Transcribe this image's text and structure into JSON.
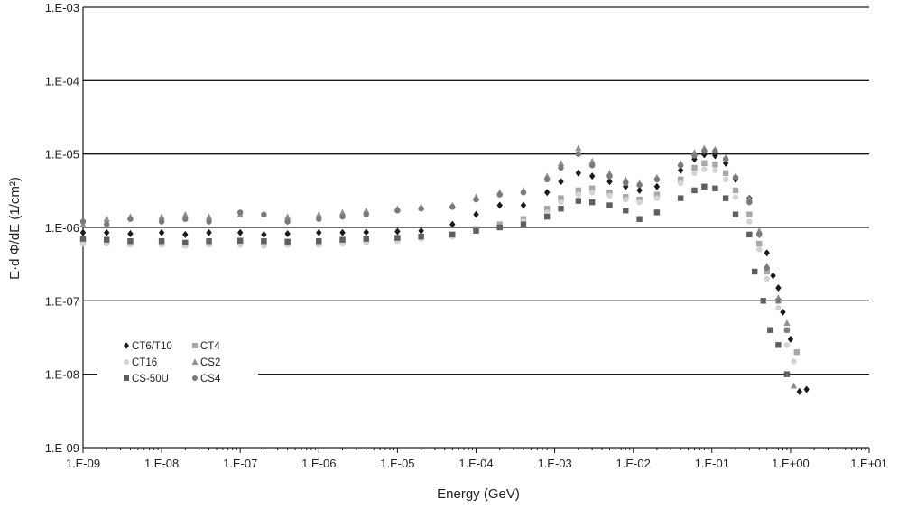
{
  "chart_data": {
    "type": "scatter",
    "title": "",
    "xlabel": "Energy (GeV)",
    "ylabel": "E·d Φ/dE (1/cm²)",
    "xscale": "log",
    "yscale": "log",
    "xlim": [
      1e-09,
      10
    ],
    "ylim": [
      1e-09,
      0.001
    ],
    "xticks": [
      1e-09,
      1e-08,
      1e-07,
      1e-06,
      1e-05,
      0.0001,
      0.001,
      0.01,
      0.1,
      1,
      10
    ],
    "xtick_labels": [
      "1.E-09",
      "1.E-08",
      "1.E-07",
      "1.E-06",
      "1.E-05",
      "1.E-04",
      "1.E-03",
      "1.E-02",
      "1.E-01",
      "1.E+00",
      "1.E+01"
    ],
    "yticks": [
      1e-09,
      1e-08,
      1e-07,
      1e-06,
      1e-05,
      0.0001,
      0.001
    ],
    "ytick_labels": [
      "1.E-09",
      "1.E-08",
      "1.E-07",
      "1.E-06",
      "1.E-05",
      "1.E-04",
      "1.E-03"
    ],
    "grid": "horizontal",
    "legend_position": "lower-left",
    "series": [
      {
        "name": "CT6/T10",
        "marker": "diamond",
        "color": "#1a1a1a",
        "points": [
          [
            1e-09,
            8.5e-07
          ],
          [
            2e-09,
            8.5e-07
          ],
          [
            4e-09,
            8.2e-07
          ],
          [
            1e-08,
            8.5e-07
          ],
          [
            2e-08,
            8e-07
          ],
          [
            4e-08,
            8.5e-07
          ],
          [
            1e-07,
            8.5e-07
          ],
          [
            2e-07,
            8e-07
          ],
          [
            4e-07,
            8.2e-07
          ],
          [
            1e-06,
            8.5e-07
          ],
          [
            2e-06,
            8.5e-07
          ],
          [
            4e-06,
            8.6e-07
          ],
          [
            1e-05,
            8.8e-07
          ],
          [
            2e-05,
            9e-07
          ],
          [
            5e-05,
            1.1e-06
          ],
          [
            0.0001,
            1.5e-06
          ],
          [
            0.0002,
            2e-06
          ],
          [
            0.0004,
            2e-06
          ],
          [
            0.0008,
            3e-06
          ],
          [
            0.0012,
            4.2e-06
          ],
          [
            0.002,
            5.5e-06
          ],
          [
            0.003,
            5e-06
          ],
          [
            0.005,
            4.2e-06
          ],
          [
            0.008,
            3.6e-06
          ],
          [
            0.012,
            3.2e-06
          ],
          [
            0.02,
            3.6e-06
          ],
          [
            0.04,
            6e-06
          ],
          [
            0.06,
            8.5e-06
          ],
          [
            0.08,
            9.8e-06
          ],
          [
            0.11,
            9.5e-06
          ],
          [
            0.15,
            7.5e-06
          ],
          [
            0.2,
            4.5e-06
          ],
          [
            0.3,
            2.5e-06
          ],
          [
            0.4,
            8e-07
          ],
          [
            0.5,
            4.5e-07
          ],
          [
            0.6,
            2.2e-07
          ],
          [
            0.7,
            1.5e-07
          ],
          [
            0.8,
            7e-08
          ],
          [
            1.0,
            3e-08
          ],
          [
            1.3,
            5.8e-09
          ],
          [
            1.6,
            6.2e-09
          ]
        ]
      },
      {
        "name": "CT4",
        "marker": "square",
        "color": "#a8a8a8",
        "points": [
          [
            1e-09,
            6.5e-07
          ],
          [
            2e-09,
            6.2e-07
          ],
          [
            4e-09,
            6e-07
          ],
          [
            1e-08,
            6e-07
          ],
          [
            2e-08,
            5.8e-07
          ],
          [
            4e-08,
            6e-07
          ],
          [
            1e-07,
            6.2e-07
          ],
          [
            2e-07,
            6e-07
          ],
          [
            4e-07,
            6e-07
          ],
          [
            1e-06,
            6e-07
          ],
          [
            2e-06,
            6.5e-07
          ],
          [
            4e-06,
            6.5e-07
          ],
          [
            1e-05,
            7e-07
          ],
          [
            2e-05,
            7.5e-07
          ],
          [
            5e-05,
            8e-07
          ],
          [
            0.0001,
            9.5e-07
          ],
          [
            0.0002,
            1.1e-06
          ],
          [
            0.0004,
            1.3e-06
          ],
          [
            0.0008,
            1.8e-06
          ],
          [
            0.0012,
            2.5e-06
          ],
          [
            0.002,
            3.2e-06
          ],
          [
            0.003,
            3.4e-06
          ],
          [
            0.005,
            3e-06
          ],
          [
            0.008,
            2.6e-06
          ],
          [
            0.012,
            2.4e-06
          ],
          [
            0.02,
            2.8e-06
          ],
          [
            0.04,
            4.5e-06
          ],
          [
            0.06,
            6.5e-06
          ],
          [
            0.08,
            7.5e-06
          ],
          [
            0.11,
            7.2e-06
          ],
          [
            0.15,
            5.5e-06
          ],
          [
            0.2,
            3.2e-06
          ],
          [
            0.3,
            1.5e-06
          ],
          [
            0.4,
            6e-07
          ],
          [
            0.5,
            2.5e-07
          ],
          [
            0.7,
            1e-07
          ],
          [
            0.9,
            4e-08
          ],
          [
            1.2,
            2e-08
          ]
        ]
      },
      {
        "name": "CT16",
        "marker": "circle",
        "color": "#d4d4d4",
        "points": [
          [
            1e-09,
            6e-07
          ],
          [
            2e-09,
            6e-07
          ],
          [
            4e-09,
            5.8e-07
          ],
          [
            1e-08,
            5.8e-07
          ],
          [
            2e-08,
            5.6e-07
          ],
          [
            4e-08,
            5.8e-07
          ],
          [
            1e-07,
            5.8e-07
          ],
          [
            2e-07,
            5.6e-07
          ],
          [
            4e-07,
            5.8e-07
          ],
          [
            1e-06,
            5.8e-07
          ],
          [
            2e-06,
            6e-07
          ],
          [
            4e-06,
            6.2e-07
          ],
          [
            1e-05,
            6.5e-07
          ],
          [
            2e-05,
            7e-07
          ],
          [
            5e-05,
            7.5e-07
          ],
          [
            0.0001,
            9e-07
          ],
          [
            0.0002,
            1e-06
          ],
          [
            0.0004,
            1.2e-06
          ],
          [
            0.0008,
            1.6e-06
          ],
          [
            0.0012,
            2.2e-06
          ],
          [
            0.002,
            2.8e-06
          ],
          [
            0.003,
            3e-06
          ],
          [
            0.005,
            2.7e-06
          ],
          [
            0.008,
            2.4e-06
          ],
          [
            0.012,
            2.2e-06
          ],
          [
            0.02,
            2.5e-06
          ],
          [
            0.04,
            4e-06
          ],
          [
            0.06,
            5.5e-06
          ],
          [
            0.08,
            6.2e-06
          ],
          [
            0.11,
            6e-06
          ],
          [
            0.15,
            4.5e-06
          ],
          [
            0.2,
            2.6e-06
          ],
          [
            0.3,
            1.2e-06
          ],
          [
            0.4,
            5e-07
          ],
          [
            0.5,
            2e-07
          ],
          [
            0.7,
            8e-08
          ],
          [
            0.9,
            2.5e-08
          ],
          [
            1.1,
            1.5e-08
          ]
        ]
      },
      {
        "name": "CS2",
        "marker": "triangle",
        "color": "#909090",
        "points": [
          [
            1e-09,
            1.1e-06
          ],
          [
            2e-09,
            1.3e-06
          ],
          [
            4e-09,
            1.4e-06
          ],
          [
            1e-08,
            1.4e-06
          ],
          [
            2e-08,
            1.5e-06
          ],
          [
            4e-08,
            1.4e-06
          ],
          [
            1e-07,
            1.5e-06
          ],
          [
            2e-07,
            1.5e-06
          ],
          [
            4e-07,
            1.4e-06
          ],
          [
            1e-06,
            1.5e-06
          ],
          [
            2e-06,
            1.6e-06
          ],
          [
            4e-06,
            1.7e-06
          ],
          [
            1e-05,
            1.8e-06
          ],
          [
            2e-05,
            1.9e-06
          ],
          [
            5e-05,
            2e-06
          ],
          [
            0.0001,
            2.6e-06
          ],
          [
            0.0002,
            3e-06
          ],
          [
            0.0004,
            3.2e-06
          ],
          [
            0.0008,
            5e-06
          ],
          [
            0.0012,
            7.5e-06
          ],
          [
            0.002,
            1.2e-05
          ],
          [
            0.003,
            8e-06
          ],
          [
            0.005,
            5.5e-06
          ],
          [
            0.008,
            4.5e-06
          ],
          [
            0.012,
            4e-06
          ],
          [
            0.02,
            4.8e-06
          ],
          [
            0.04,
            7.5e-06
          ],
          [
            0.06,
            1.05e-05
          ],
          [
            0.08,
            1.2e-05
          ],
          [
            0.11,
            1.15e-05
          ],
          [
            0.15,
            9e-06
          ],
          [
            0.2,
            5e-06
          ],
          [
            0.3,
            2.5e-06
          ],
          [
            0.4,
            9e-07
          ],
          [
            0.5,
            3e-07
          ],
          [
            0.7,
            1.1e-07
          ],
          [
            0.9,
            5e-08
          ],
          [
            1.1,
            7e-09
          ]
        ]
      },
      {
        "name": "CS-50U",
        "marker": "square",
        "color": "#5f5f5f",
        "points": [
          [
            1e-09,
            7e-07
          ],
          [
            2e-09,
            6.8e-07
          ],
          [
            4e-09,
            6.5e-07
          ],
          [
            1e-08,
            6.5e-07
          ],
          [
            2e-08,
            6.2e-07
          ],
          [
            4e-08,
            6.5e-07
          ],
          [
            1e-07,
            6.6e-07
          ],
          [
            2e-07,
            6.5e-07
          ],
          [
            4e-07,
            6.4e-07
          ],
          [
            1e-06,
            6.5e-07
          ],
          [
            2e-06,
            6.8e-07
          ],
          [
            4e-06,
            7e-07
          ],
          [
            1e-05,
            7.2e-07
          ],
          [
            2e-05,
            7.5e-07
          ],
          [
            5e-05,
            8e-07
          ],
          [
            0.0001,
            9e-07
          ],
          [
            0.0002,
            1e-06
          ],
          [
            0.0004,
            1.1e-06
          ],
          [
            0.0008,
            1.4e-06
          ],
          [
            0.0012,
            1.8e-06
          ],
          [
            0.002,
            2.3e-06
          ],
          [
            0.003,
            2.2e-06
          ],
          [
            0.005,
            2e-06
          ],
          [
            0.008,
            1.7e-06
          ],
          [
            0.012,
            1.3e-06
          ],
          [
            0.02,
            1.6e-06
          ],
          [
            0.04,
            2.5e-06
          ],
          [
            0.06,
            3.2e-06
          ],
          [
            0.08,
            3.6e-06
          ],
          [
            0.11,
            3.4e-06
          ],
          [
            0.15,
            2.5e-06
          ],
          [
            0.2,
            1.5e-06
          ],
          [
            0.3,
            8e-07
          ],
          [
            0.35,
            2.5e-07
          ],
          [
            0.45,
            1e-07
          ],
          [
            0.55,
            4e-08
          ],
          [
            0.7,
            2.5e-08
          ],
          [
            0.9,
            1e-08
          ]
        ]
      },
      {
        "name": "CS4",
        "marker": "circle",
        "color": "#7a7a7a",
        "points": [
          [
            1e-09,
            1.2e-06
          ],
          [
            2e-09,
            1.1e-06
          ],
          [
            4e-09,
            1.3e-06
          ],
          [
            1e-08,
            1.2e-06
          ],
          [
            2e-08,
            1.3e-06
          ],
          [
            4e-08,
            1.2e-06
          ],
          [
            1e-07,
            1.6e-06
          ],
          [
            2e-07,
            1.5e-06
          ],
          [
            4e-07,
            1.2e-06
          ],
          [
            1e-06,
            1.3e-06
          ],
          [
            2e-06,
            1.4e-06
          ],
          [
            4e-06,
            1.5e-06
          ],
          [
            1e-05,
            1.7e-06
          ],
          [
            2e-05,
            1.8e-06
          ],
          [
            5e-05,
            1.9e-06
          ],
          [
            0.0001,
            2.4e-06
          ],
          [
            0.0002,
            2.8e-06
          ],
          [
            0.0004,
            3e-06
          ],
          [
            0.0008,
            4.5e-06
          ],
          [
            0.0012,
            6.5e-06
          ],
          [
            0.002,
            1e-05
          ],
          [
            0.003,
            7e-06
          ],
          [
            0.005,
            5e-06
          ],
          [
            0.008,
            4e-06
          ],
          [
            0.012,
            3.8e-06
          ],
          [
            0.02,
            4.5e-06
          ],
          [
            0.04,
            7e-06
          ],
          [
            0.06,
            9.5e-06
          ],
          [
            0.08,
            1.1e-05
          ],
          [
            0.11,
            1.1e-05
          ],
          [
            0.15,
            8.5e-06
          ],
          [
            0.2,
            4.8e-06
          ],
          [
            0.3,
            2.2e-06
          ],
          [
            0.4,
            8e-07
          ],
          [
            0.5,
            2.8e-07
          ],
          [
            0.7,
            1e-07
          ],
          [
            0.9,
            4e-08
          ]
        ]
      }
    ]
  }
}
